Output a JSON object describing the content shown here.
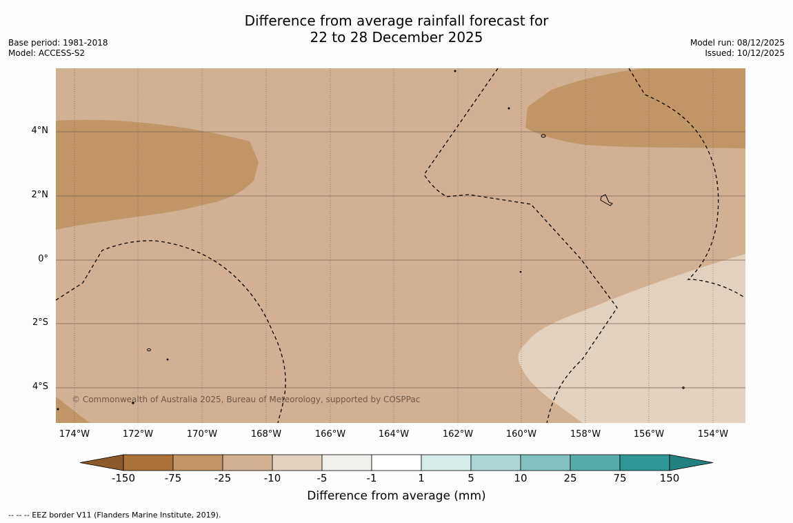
{
  "header": {
    "title_line1": "Difference from average rainfall forecast for",
    "title_line2": "22 to 28 December 2025",
    "base_period": "Base period: 1981-2018",
    "model": "Model: ACCESS-S2",
    "model_run": "Model run: 08/12/2025",
    "issued": "Issued: 10/12/2025"
  },
  "map": {
    "latitude_labels": [
      "4°N",
      "2°N",
      "0°",
      "2°S",
      "4°S"
    ],
    "longitude_labels": [
      "174°W",
      "172°W",
      "170°W",
      "168°W",
      "166°W",
      "164°W",
      "162°W",
      "160°W",
      "158°W",
      "156°W",
      "154°W"
    ],
    "copyright": "© Commonwealth of Australia 2025, Bureau of Meteorology, supported by COSPPac"
  },
  "colorbar": {
    "title": "Difference from average (mm)",
    "tick_labels": [
      "-150",
      "-75",
      "-25",
      "-10",
      "-5",
      "-1",
      "1",
      "5",
      "10",
      "25",
      "75",
      "150"
    ],
    "colors": [
      "#ab7339",
      "#c19566",
      "#d2b193",
      "#e3d1c0",
      "#f1efeb",
      "#ffffff",
      "#d6ecea",
      "#abd6d5",
      "#82c1bf",
      "#57aba9",
      "#2f9894"
    ],
    "low_extend_color": "#8c5a2a",
    "high_extend_color": "#23817d"
  },
  "legend": {
    "eez": "--  --  -- EEZ border V11 (Flanders Marine Institute, 2019)."
  }
}
